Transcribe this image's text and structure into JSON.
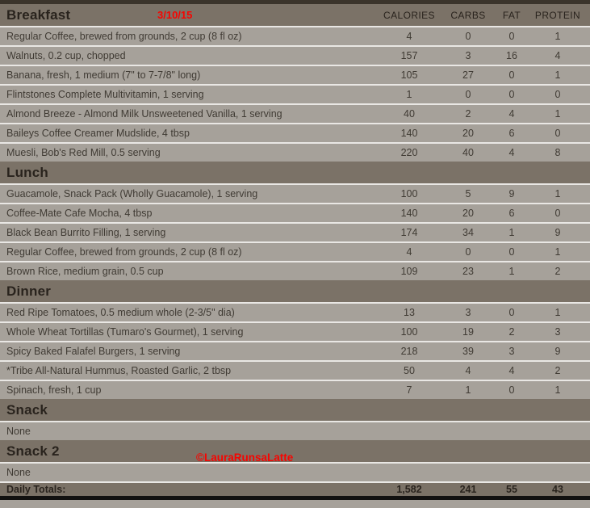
{
  "date": "3/10/15",
  "watermark": "©LauraRunsaLatte",
  "columns": [
    "CALORIES",
    "CARBS",
    "FAT",
    "PROTEIN"
  ],
  "sections": [
    {
      "title": "Breakfast",
      "items": [
        {
          "name": "Regular Coffee, brewed from grounds, 2 cup (8 fl oz)",
          "calories": 4,
          "carbs": 0,
          "fat": 0,
          "protein": 1
        },
        {
          "name": "Walnuts, 0.2 cup, chopped",
          "calories": 157,
          "carbs": 3,
          "fat": 16,
          "protein": 4
        },
        {
          "name": "Banana, fresh, 1 medium (7\" to 7-7/8\" long)",
          "calories": 105,
          "carbs": 27,
          "fat": 0,
          "protein": 1
        },
        {
          "name": "Flintstones Complete Multivitamin, 1 serving",
          "calories": 1,
          "carbs": 0,
          "fat": 0,
          "protein": 0
        },
        {
          "name": "Almond Breeze - Almond Milk Unsweetened Vanilla, 1 serving",
          "calories": 40,
          "carbs": 2,
          "fat": 4,
          "protein": 1
        },
        {
          "name": "Baileys Coffee Creamer Mudslide, 4 tbsp",
          "calories": 140,
          "carbs": 20,
          "fat": 6,
          "protein": 0
        },
        {
          "name": "Muesli, Bob's Red Mill, 0.5 serving",
          "calories": 220,
          "carbs": 40,
          "fat": 4,
          "protein": 8
        }
      ]
    },
    {
      "title": "Lunch",
      "items": [
        {
          "name": "Guacamole, Snack Pack (Wholly Guacamole), 1 serving",
          "calories": 100,
          "carbs": 5,
          "fat": 9,
          "protein": 1
        },
        {
          "name": "Coffee-Mate Cafe Mocha, 4 tbsp",
          "calories": 140,
          "carbs": 20,
          "fat": 6,
          "protein": 0
        },
        {
          "name": "Black Bean Burrito Filling, 1 serving",
          "calories": 174,
          "carbs": 34,
          "fat": 1,
          "protein": 9
        },
        {
          "name": "Regular Coffee, brewed from grounds, 2 cup (8 fl oz)",
          "calories": 4,
          "carbs": 0,
          "fat": 0,
          "protein": 1
        },
        {
          "name": "Brown Rice, medium grain, 0.5 cup",
          "calories": 109,
          "carbs": 23,
          "fat": 1,
          "protein": 2
        }
      ]
    },
    {
      "title": "Dinner",
      "items": [
        {
          "name": "Red Ripe Tomatoes, 0.5 medium whole (2-3/5\" dia)",
          "calories": 13,
          "carbs": 3,
          "fat": 0,
          "protein": 1
        },
        {
          "name": "Whole Wheat Tortillas (Tumaro's Gourmet), 1 serving",
          "calories": 100,
          "carbs": 19,
          "fat": 2,
          "protein": 3
        },
        {
          "name": "Spicy Baked Falafel Burgers, 1 serving",
          "calories": 218,
          "carbs": 39,
          "fat": 3,
          "protein": 9
        },
        {
          "name": "*Tribe All-Natural Hummus, Roasted Garlic, 2 tbsp",
          "calories": 50,
          "carbs": 4,
          "fat": 4,
          "protein": 2
        },
        {
          "name": "Spinach, fresh, 1 cup",
          "calories": 7,
          "carbs": 1,
          "fat": 0,
          "protein": 1
        }
      ]
    },
    {
      "title": "Snack",
      "empty": "None"
    },
    {
      "title": "Snack 2",
      "empty": "None",
      "has_watermark": true
    }
  ],
  "totals": {
    "label": "Daily Totals:",
    "calories": "1,582",
    "carbs": "241",
    "fat": "55",
    "protein": "43"
  },
  "colors": {
    "band": "#7b7267",
    "row": "#a6a19a",
    "separator": "#e9e7e4",
    "top_strip": "#3b342b",
    "bottom_strip": "#121110",
    "red": "#f70400",
    "text_dark": "#29231d",
    "text_row": "#403b34"
  }
}
